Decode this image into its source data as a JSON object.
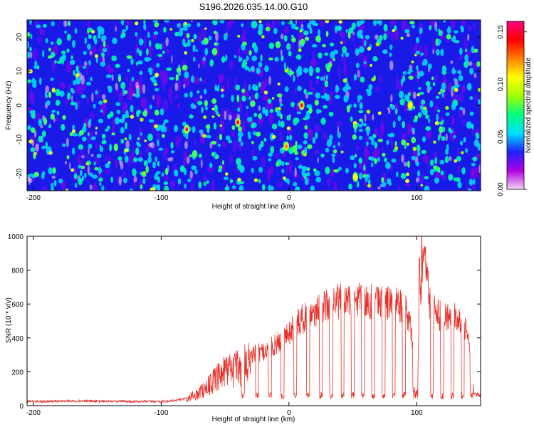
{
  "title": "S196.2026.035.14.00.G10",
  "chart_data": [
    {
      "type": "heatmap",
      "xlabel": "Height of straight line (km)",
      "ylabel": "Frequency (Hz)",
      "xlim": [
        -205,
        150
      ],
      "ylim": [
        -25,
        25
      ],
      "xticks": [
        -200,
        -100,
        0,
        100
      ],
      "yticks": [
        -20,
        -10,
        0,
        10,
        20
      ],
      "colorbar": {
        "label": "Normalized spectral amplitude",
        "range": [
          0.0,
          0.16
        ],
        "ticks": [
          0.0,
          0.05,
          0.1,
          0.15
        ],
        "tick_labels": [
          "0.00",
          "0.05",
          "0.10",
          "0.15"
        ],
        "colors": [
          "#f2d6f2",
          "#b000e0",
          "#2020ff",
          "#00e0ff",
          "#00ff80",
          "#a0ff00",
          "#ffff00",
          "#ff8000",
          "#ff0000",
          "#ff0080"
        ]
      },
      "hotspots": [
        {
          "x": -80,
          "y": -7,
          "value": 0.16
        },
        {
          "x": -40,
          "y": -5,
          "value": 0.14
        },
        {
          "x": 10,
          "y": 0,
          "value": 0.15
        },
        {
          "x": -2,
          "y": -12,
          "value": 0.12
        },
        {
          "x": 52,
          "y": -21,
          "value": 0.11
        },
        {
          "x": 95,
          "y": 0,
          "value": 0.1
        }
      ]
    },
    {
      "type": "line",
      "xlabel": "Height of straight line (km)",
      "ylabel": "SNR (10 * v/v)",
      "xlim": [
        -205,
        150
      ],
      "ylim": [
        0,
        1000
      ],
      "xticks": [
        -200,
        -100,
        0,
        100
      ],
      "yticks": [
        0,
        200,
        400,
        600,
        800,
        1000
      ],
      "series": [
        {
          "name": "SNR",
          "color": "#e8312a",
          "x": [
            -205,
            -190,
            -170,
            -150,
            -130,
            -110,
            -100,
            -90,
            -80,
            -70,
            -60,
            -50,
            -40,
            -30,
            -20,
            -10,
            0,
            10,
            20,
            30,
            40,
            50,
            60,
            70,
            80,
            90,
            95,
            100,
            105,
            110,
            120,
            130,
            140,
            145,
            150
          ],
          "values": [
            25,
            25,
            28,
            26,
            25,
            24,
            25,
            28,
            45,
            90,
            160,
            230,
            270,
            300,
            320,
            360,
            430,
            510,
            560,
            600,
            615,
            620,
            618,
            610,
            605,
            590,
            480,
            120,
            980,
            600,
            520,
            550,
            420,
            70,
            60
          ],
          "dips": [
            -36,
            -25,
            -15,
            -5,
            5,
            15,
            25,
            33,
            42,
            50,
            58,
            66,
            74,
            82,
            90,
            98,
            112,
            120,
            128,
            136,
            143
          ],
          "peaks": [
            {
              "x": 104,
              "y": 1000
            },
            {
              "x": 106,
              "y": 940
            },
            {
              "x": 102,
              "y": 870
            }
          ]
        }
      ]
    }
  ]
}
